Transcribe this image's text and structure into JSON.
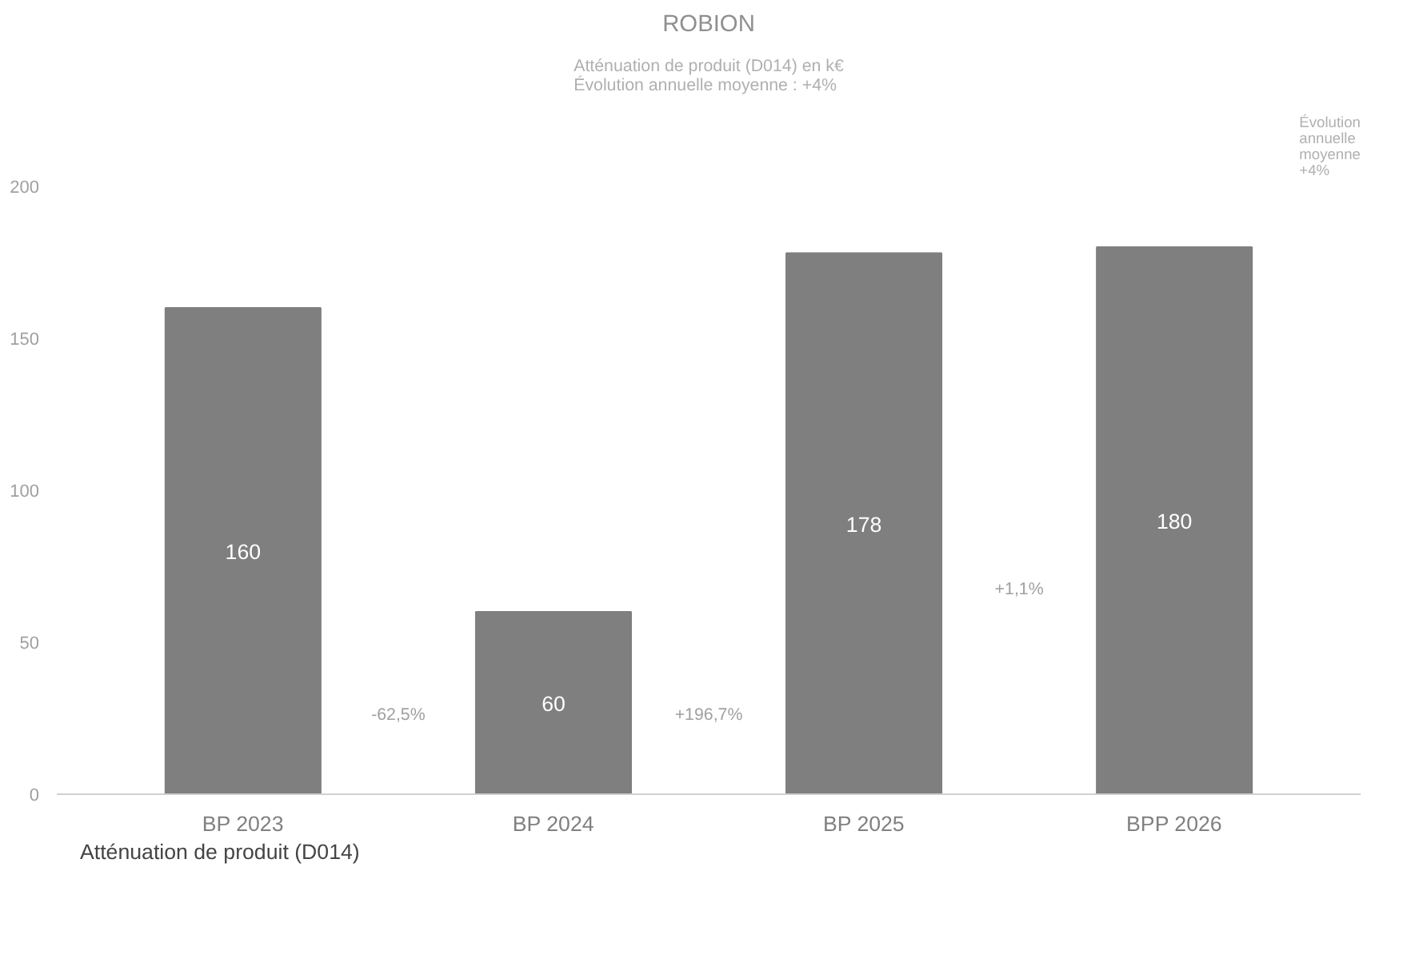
{
  "chart_data": {
    "type": "bar",
    "title": "ROBION",
    "subtitle": "Atténuation de produit (D014) en k€\nÉvolution annuelle moyenne : +4%",
    "categories": [
      "BP 2023",
      "BP 2024",
      "BP 2025",
      "BPP 2026"
    ],
    "series": [
      {
        "name": "Atténuation de produit (D014)",
        "color": "#7f7f7f",
        "values": [
          160,
          60,
          178,
          180
        ]
      }
    ],
    "ylim": [
      0,
      200
    ],
    "yticks": [
      0,
      50,
      100,
      150,
      200
    ],
    "grid": false,
    "legend": "bottom left",
    "data_labels": true,
    "annotations": [
      "Évolution\nannuelle\nmoyenne\n+4%",
      "-62,5%",
      "+196,7%",
      "+1,1%"
    ]
  }
}
